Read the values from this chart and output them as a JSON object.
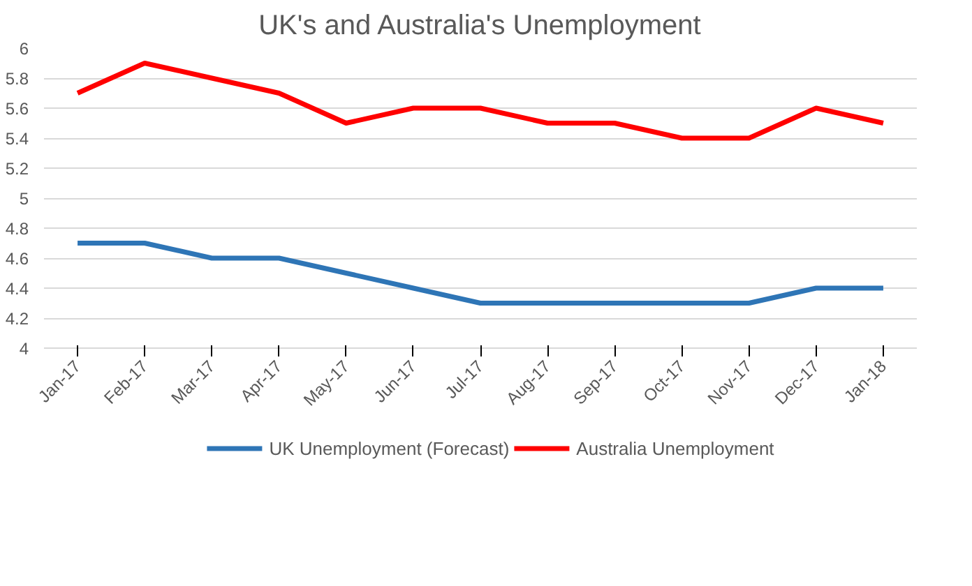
{
  "chart_data": {
    "type": "line",
    "title": "UK's and Australia's Unemployment",
    "categories": [
      "Jan-17",
      "Feb-17",
      "Mar-17",
      "Apr-17",
      "May-17",
      "Jun-17",
      "Jul-17",
      "Aug-17",
      "Sep-17",
      "Oct-17",
      "Nov-17",
      "Dec-17",
      "Jan-18"
    ],
    "series": [
      {
        "name": "UK Unemployment (Forecast)",
        "color": "#2e75b6",
        "values": [
          4.7,
          4.7,
          4.6,
          4.6,
          4.5,
          4.4,
          4.3,
          4.3,
          4.3,
          4.3,
          4.3,
          4.4,
          4.4
        ]
      },
      {
        "name": "Australia Unemployment",
        "color": "#ff0000",
        "values": [
          5.7,
          5.9,
          5.8,
          5.7,
          5.5,
          5.6,
          5.6,
          5.5,
          5.5,
          5.4,
          5.4,
          5.6,
          5.5
        ]
      }
    ],
    "ylim": [
      4,
      6
    ],
    "yticks": [
      4,
      4.2,
      4.4,
      4.6,
      4.8,
      5,
      5.2,
      5.4,
      5.6,
      5.8,
      6
    ],
    "grid": "y",
    "legend": "bottom",
    "marker": "none",
    "line_style": "solid"
  }
}
